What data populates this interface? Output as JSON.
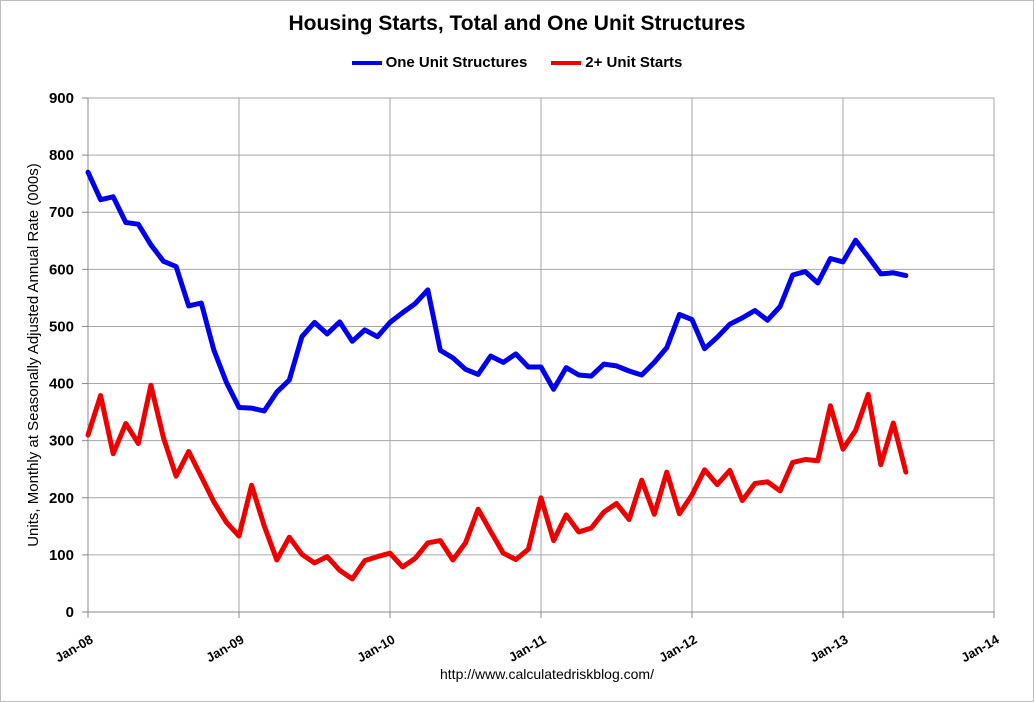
{
  "chart_data": {
    "type": "line",
    "title": "Housing Starts, Total and One Unit Structures",
    "ylabel": "Units, Monthly at Seasonally Adjusted Annual Rate (000s)",
    "xlabel": "",
    "x_start": "2008-01",
    "x_end": "2014-01",
    "x_ticks": [
      "Jan-08",
      "Jan-09",
      "Jan-10",
      "Jan-11",
      "Jan-12",
      "Jan-13",
      "Jan-14"
    ],
    "ylim": [
      0,
      900
    ],
    "y_ticks": [
      0,
      100,
      200,
      300,
      400,
      500,
      600,
      700,
      800,
      900
    ],
    "grid": true,
    "legend_position": "top",
    "series": [
      {
        "name": "One Unit Structures",
        "color": "#0000ee",
        "values": [
          [
            "2008-01",
            770
          ],
          [
            "2008-02",
            722
          ],
          [
            "2008-03",
            727
          ],
          [
            "2008-04",
            682
          ],
          [
            "2008-05",
            679
          ],
          [
            "2008-06",
            643
          ],
          [
            "2008-07",
            614
          ],
          [
            "2008-08",
            605
          ],
          [
            "2008-09",
            536
          ],
          [
            "2008-10",
            541
          ],
          [
            "2008-11",
            459
          ],
          [
            "2008-12",
            402
          ],
          [
            "2009-01",
            358
          ],
          [
            "2009-02",
            357
          ],
          [
            "2009-03",
            352
          ],
          [
            "2009-04",
            385
          ],
          [
            "2009-05",
            406
          ],
          [
            "2009-06",
            482
          ],
          [
            "2009-07",
            507
          ],
          [
            "2009-08",
            487
          ],
          [
            "2009-09",
            508
          ],
          [
            "2009-10",
            474
          ],
          [
            "2009-11",
            494
          ],
          [
            "2009-12",
            482
          ],
          [
            "2010-01",
            507
          ],
          [
            "2010-02",
            524
          ],
          [
            "2010-03",
            540
          ],
          [
            "2010-04",
            564
          ],
          [
            "2010-05",
            458
          ],
          [
            "2010-06",
            445
          ],
          [
            "2010-07",
            425
          ],
          [
            "2010-08",
            416
          ],
          [
            "2010-09",
            448
          ],
          [
            "2010-10",
            437
          ],
          [
            "2010-11",
            452
          ],
          [
            "2010-12",
            429
          ],
          [
            "2011-01",
            429
          ],
          [
            "2011-02",
            390
          ],
          [
            "2011-03",
            428
          ],
          [
            "2011-04",
            415
          ],
          [
            "2011-05",
            413
          ],
          [
            "2011-06",
            434
          ],
          [
            "2011-07",
            431
          ],
          [
            "2011-08",
            422
          ],
          [
            "2011-09",
            415
          ],
          [
            "2011-10",
            437
          ],
          [
            "2011-11",
            463
          ],
          [
            "2011-12",
            521
          ],
          [
            "2012-01",
            512
          ],
          [
            "2012-02",
            461
          ],
          [
            "2012-03",
            481
          ],
          [
            "2012-04",
            504
          ],
          [
            "2012-05",
            515
          ],
          [
            "2012-06",
            528
          ],
          [
            "2012-07",
            511
          ],
          [
            "2012-08",
            535
          ],
          [
            "2012-09",
            590
          ],
          [
            "2012-10",
            596
          ],
          [
            "2012-11",
            576
          ],
          [
            "2012-12",
            619
          ],
          [
            "2013-01",
            613
          ],
          [
            "2013-02",
            651
          ],
          [
            "2013-03",
            622
          ],
          [
            "2013-04",
            592
          ],
          [
            "2013-05",
            594
          ],
          [
            "2013-06",
            589
          ]
        ]
      },
      {
        "name": "2+ Unit Starts",
        "color": "#ee0000",
        "values": [
          [
            "2008-01",
            310
          ],
          [
            "2008-02",
            379
          ],
          [
            "2008-03",
            277
          ],
          [
            "2008-04",
            330
          ],
          [
            "2008-05",
            295
          ],
          [
            "2008-06",
            397
          ],
          [
            "2008-07",
            305
          ],
          [
            "2008-08",
            238
          ],
          [
            "2008-09",
            281
          ],
          [
            "2008-10",
            237
          ],
          [
            "2008-11",
            193
          ],
          [
            "2008-12",
            157
          ],
          [
            "2009-01",
            133
          ],
          [
            "2009-02",
            222
          ],
          [
            "2009-03",
            151
          ],
          [
            "2009-04",
            91
          ],
          [
            "2009-05",
            131
          ],
          [
            "2009-06",
            101
          ],
          [
            "2009-07",
            86
          ],
          [
            "2009-08",
            97
          ],
          [
            "2009-09",
            73
          ],
          [
            "2009-10",
            58
          ],
          [
            "2009-11",
            90
          ],
          [
            "2009-12",
            97
          ],
          [
            "2010-01",
            103
          ],
          [
            "2010-02",
            79
          ],
          [
            "2010-03",
            94
          ],
          [
            "2010-04",
            121
          ],
          [
            "2010-05",
            125
          ],
          [
            "2010-06",
            91
          ],
          [
            "2010-07",
            121
          ],
          [
            "2010-08",
            180
          ],
          [
            "2010-09",
            141
          ],
          [
            "2010-10",
            103
          ],
          [
            "2010-11",
            92
          ],
          [
            "2010-12",
            110
          ],
          [
            "2011-01",
            200
          ],
          [
            "2011-02",
            125
          ],
          [
            "2011-03",
            170
          ],
          [
            "2011-04",
            140
          ],
          [
            "2011-05",
            147
          ],
          [
            "2011-06",
            175
          ],
          [
            "2011-07",
            190
          ],
          [
            "2011-08",
            162
          ],
          [
            "2011-09",
            231
          ],
          [
            "2011-10",
            171
          ],
          [
            "2011-11",
            245
          ],
          [
            "2011-12",
            172
          ],
          [
            "2012-01",
            205
          ],
          [
            "2012-02",
            249
          ],
          [
            "2012-03",
            223
          ],
          [
            "2012-04",
            248
          ],
          [
            "2012-05",
            195
          ],
          [
            "2012-06",
            225
          ],
          [
            "2012-07",
            228
          ],
          [
            "2012-08",
            212
          ],
          [
            "2012-09",
            262
          ],
          [
            "2012-10",
            267
          ],
          [
            "2012-11",
            265
          ],
          [
            "2012-12",
            361
          ],
          [
            "2013-01",
            285
          ],
          [
            "2013-02",
            318
          ],
          [
            "2013-03",
            381
          ],
          [
            "2013-04",
            258
          ],
          [
            "2013-05",
            331
          ],
          [
            "2013-06",
            245
          ]
        ]
      }
    ]
  },
  "source": "http://www.calculatedriskblog.com/"
}
